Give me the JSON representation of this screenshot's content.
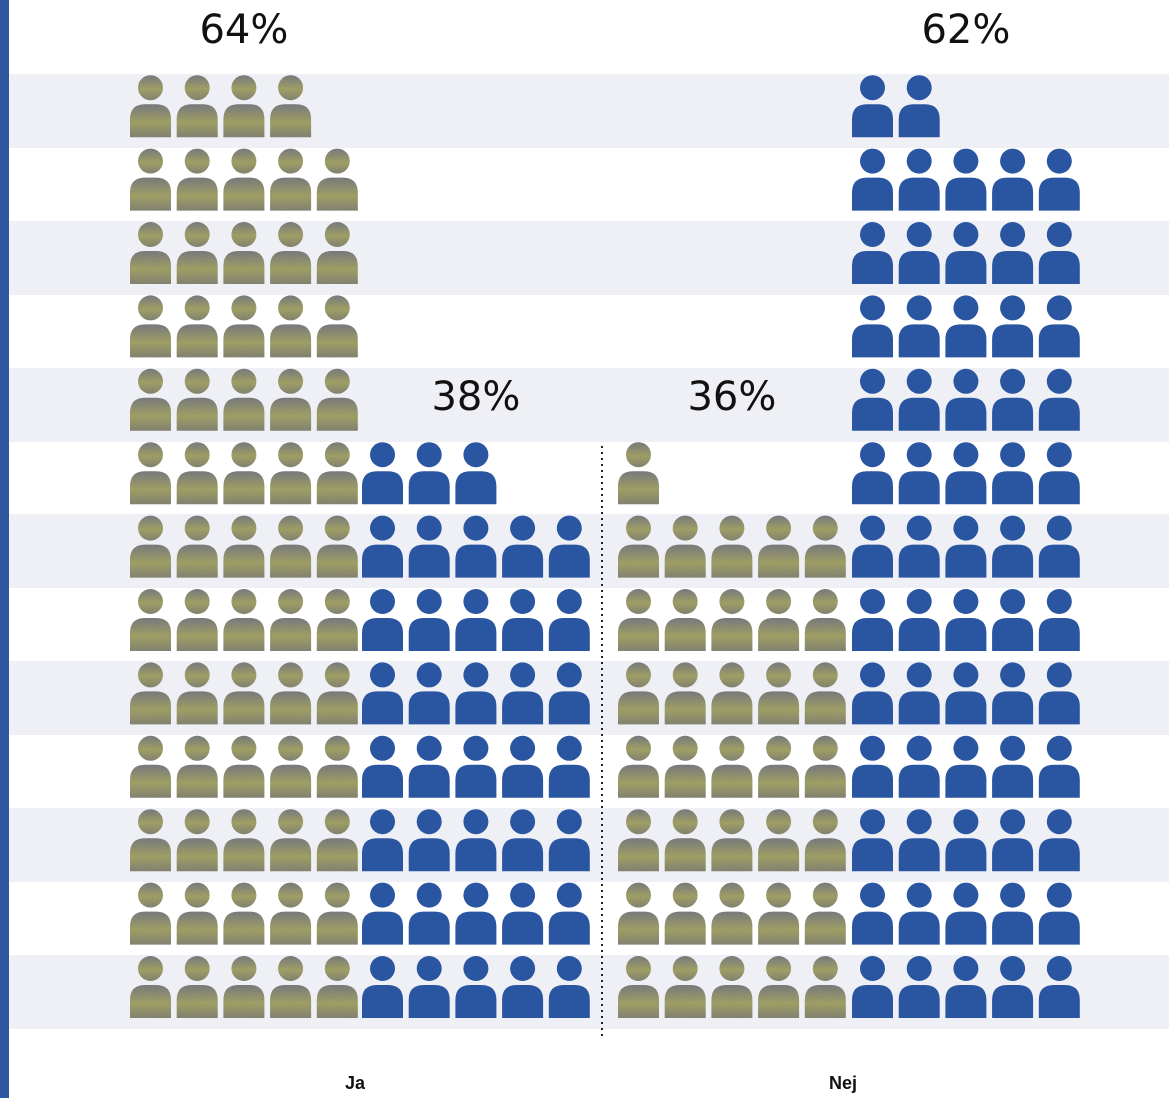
{
  "chart_data": {
    "type": "pictograph",
    "groups": [
      {
        "label": "Ja",
        "columns": [
          {
            "percent_label": "64%",
            "value": 64,
            "icon_count": 64,
            "color": "gray-olive"
          },
          {
            "percent_label": "38%",
            "value": 38,
            "icon_count": 38,
            "color": "blue"
          }
        ]
      },
      {
        "label": "Nej",
        "columns": [
          {
            "percent_label": "36%",
            "value": 36,
            "icon_count": 36,
            "color": "gray-olive"
          },
          {
            "percent_label": "62%",
            "value": 62,
            "icon_count": 62,
            "color": "blue"
          }
        ]
      }
    ],
    "icon": "person-icon",
    "icons_per_row": 5,
    "colors": {
      "blue": "#2a55a0",
      "gray": "#7f8184",
      "olive": "#a9a86c",
      "band": "#eff0f5",
      "accent_bar": "#2f57a0"
    },
    "banded_rows": true
  }
}
